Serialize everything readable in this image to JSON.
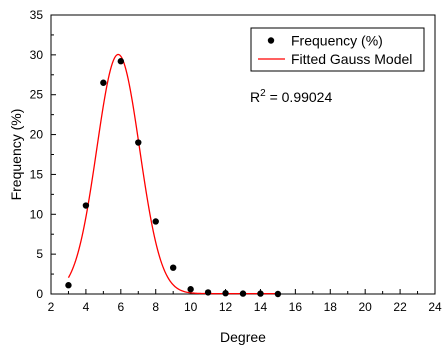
{
  "chart_data": {
    "type": "scatter",
    "title": "",
    "xlabel": "Degree",
    "ylabel": "Frequency (%)",
    "xlim": [
      2,
      24
    ],
    "ylim": [
      0,
      35
    ],
    "xticks": [
      2,
      4,
      6,
      8,
      10,
      12,
      14,
      16,
      18,
      20,
      22,
      24
    ],
    "yticks": [
      0,
      5,
      10,
      15,
      20,
      25,
      30,
      35
    ],
    "grid": false,
    "legend_position": "top-right",
    "series": [
      {
        "name": "Frequency (%)",
        "kind": "scatter",
        "color": "#000000",
        "x": [
          3,
          4,
          5,
          6,
          7,
          8,
          9,
          10,
          11,
          12,
          13,
          14,
          15
        ],
        "y": [
          1.1,
          11.1,
          26.5,
          29.2,
          19.0,
          9.1,
          3.3,
          0.6,
          0.2,
          0.1,
          0.05,
          0.05,
          0.0
        ]
      },
      {
        "name": "Fitted Gauss Model",
        "kind": "line",
        "color": "#ff0000",
        "model": "gauss",
        "x_range": [
          3,
          15
        ],
        "params": {
          "y0": 0.05,
          "xc": 5.85,
          "w": 2.45,
          "A": 30.0
        }
      }
    ],
    "annotation": {
      "prefix": "R",
      "superscript": "2",
      "value": " = 0.99024"
    }
  }
}
